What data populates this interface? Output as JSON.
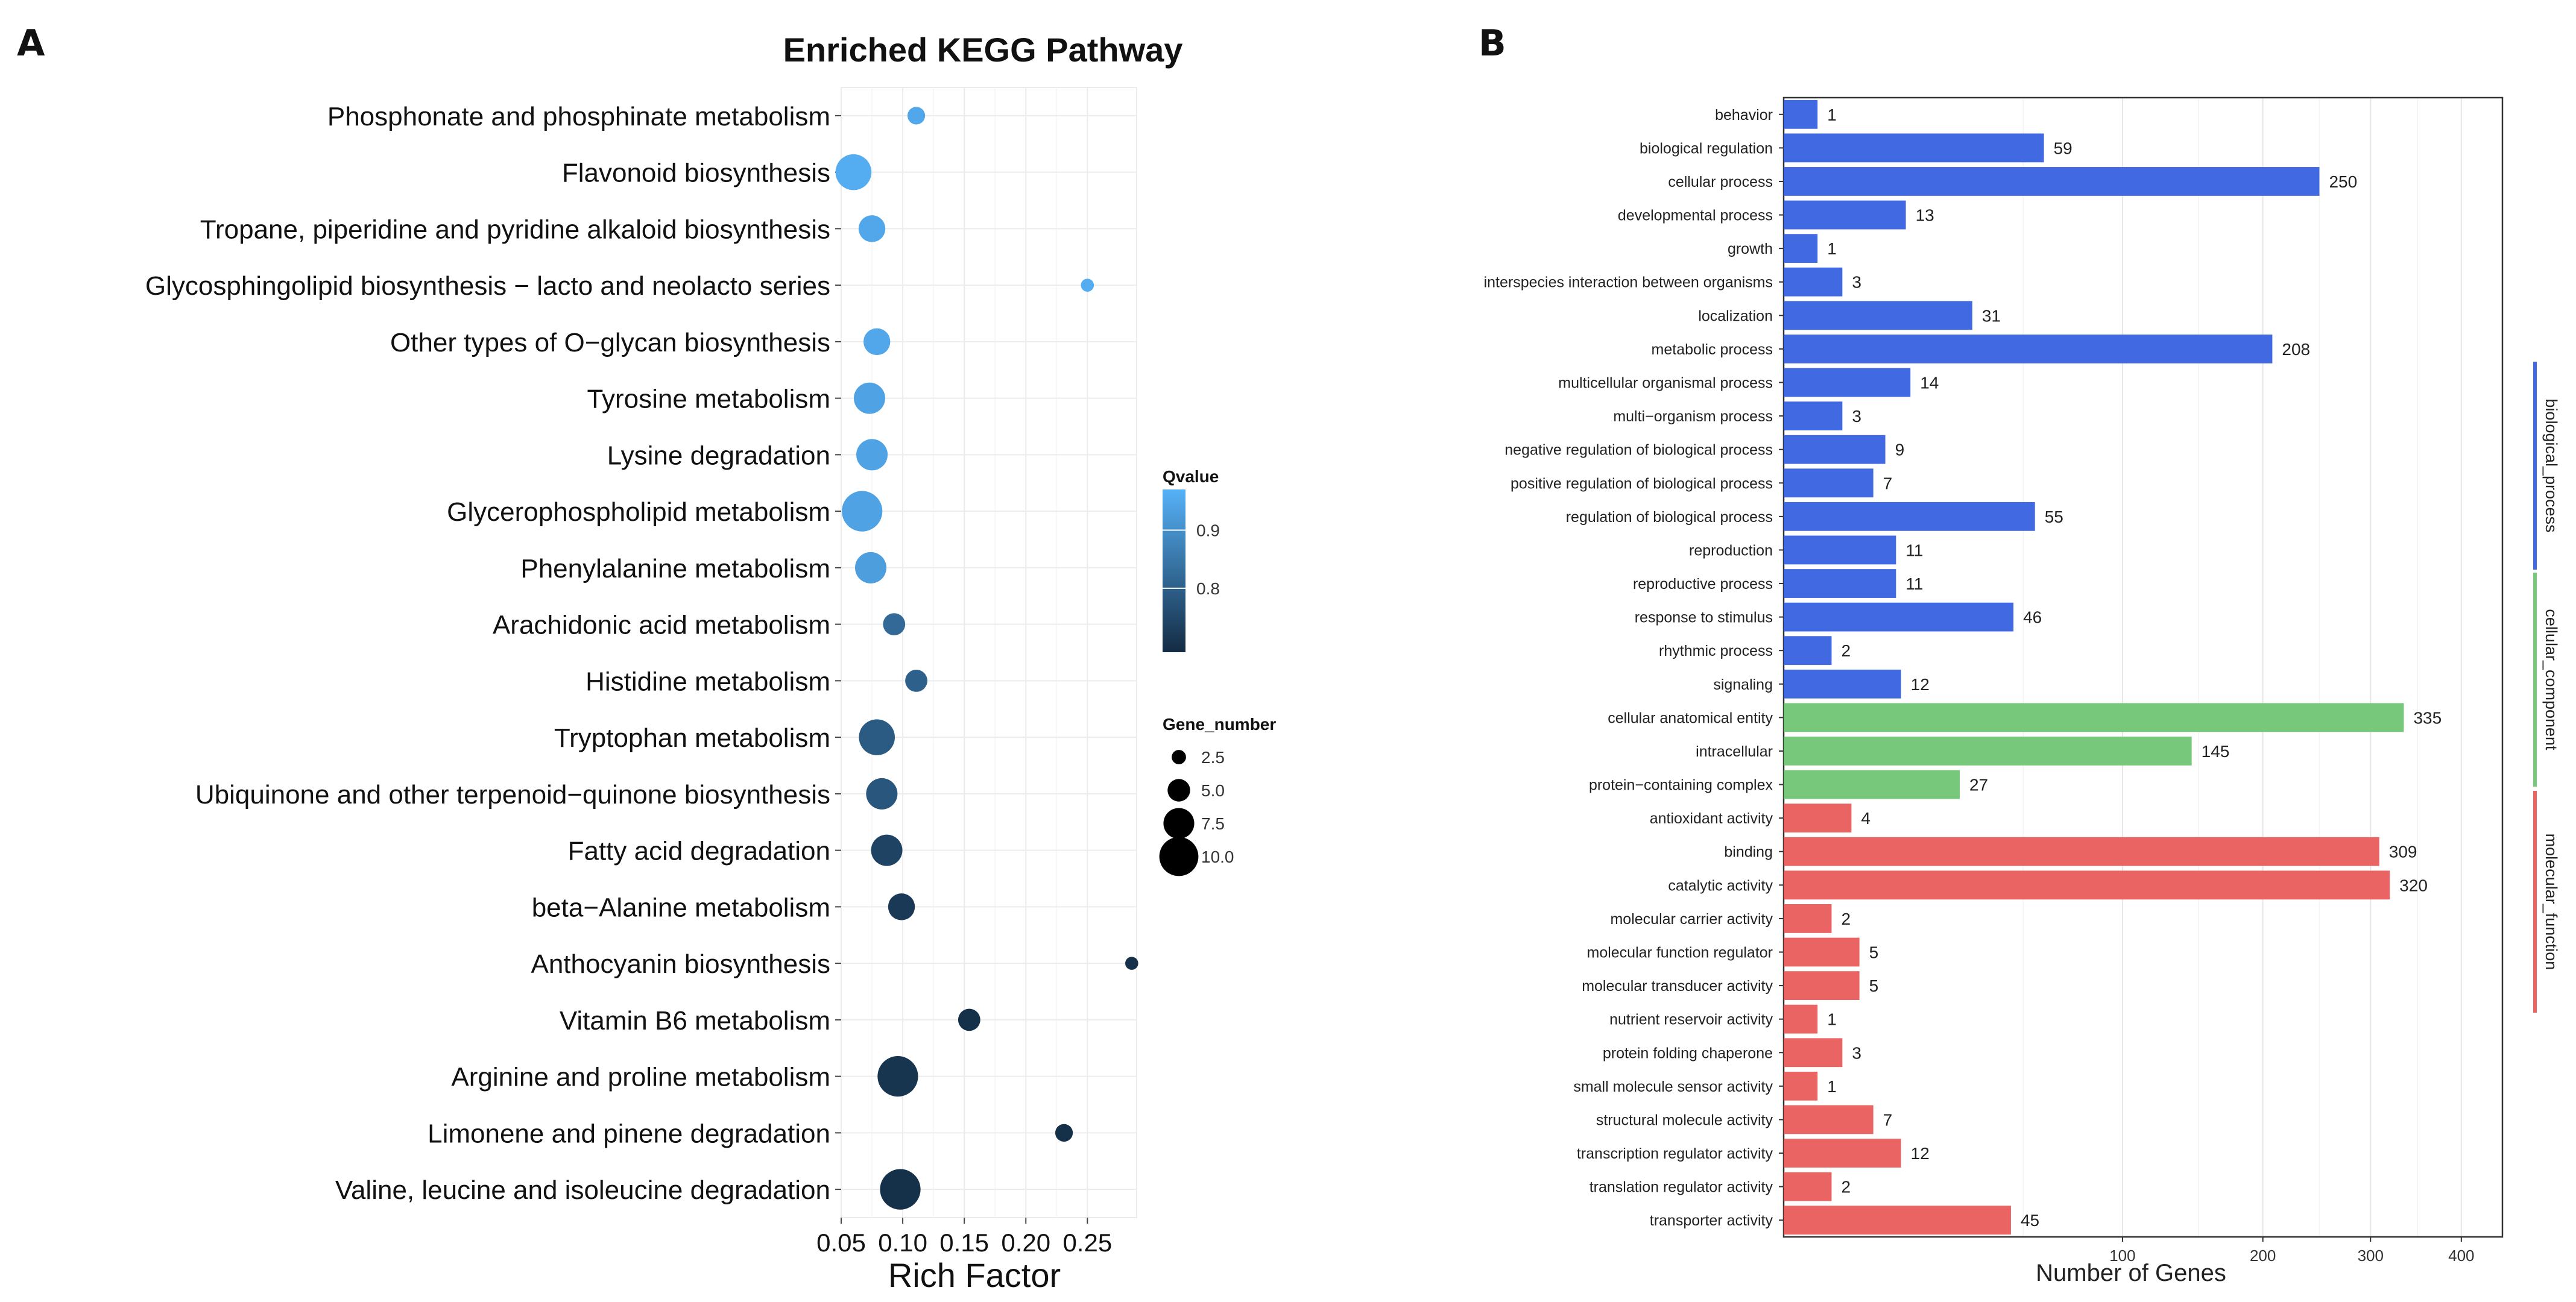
{
  "panels": {
    "a_letter": "A",
    "b_letter": "B"
  },
  "chart_data": [
    {
      "type": "scatter",
      "title": "Enriched KEGG Pathway",
      "xlabel": "Rich Factor",
      "ylabel": "",
      "xlim": [
        0.05,
        0.29
      ],
      "x_ticks": [
        "0.05",
        "0.10",
        "0.15",
        "0.20",
        "0.25"
      ],
      "x_tick_values": [
        0.05,
        0.1,
        0.15,
        0.2,
        0.25
      ],
      "grid": true,
      "categories": [
        "Phosphonate and phosphinate metabolism",
        "Flavonoid biosynthesis",
        "Tropane, piperidine and pyridine alkaloid biosynthesis",
        "Glycosphingolipid biosynthesis − lacto and neolacto series",
        "Other types of O−glycan biosynthesis",
        "Tyrosine metabolism",
        "Lysine degradation",
        "Glycerophospholipid metabolism",
        "Phenylalanine metabolism",
        "Arachidonic acid metabolism",
        "Histidine metabolism",
        "Tryptophan metabolism",
        "Ubiquinone and other terpenoid−quinone biosynthesis",
        "Fatty acid degradation",
        "beta−Alanine metabolism",
        "Anthocyanin biosynthesis",
        "Vitamin B6 metabolism",
        "Arginine and proline metabolism",
        "Limonene and pinene degradation",
        "Valine, leucine and isoleucine degradation"
      ],
      "rich_factor": [
        0.111,
        0.06,
        0.075,
        0.25,
        0.079,
        0.073,
        0.075,
        0.067,
        0.074,
        0.093,
        0.111,
        0.079,
        0.083,
        0.087,
        0.099,
        0.286,
        0.154,
        0.096,
        0.231,
        0.098
      ],
      "qvalue": [
        0.95,
        0.96,
        0.95,
        0.96,
        0.95,
        0.94,
        0.94,
        0.94,
        0.93,
        0.82,
        0.8,
        0.79,
        0.78,
        0.74,
        0.72,
        0.7,
        0.7,
        0.71,
        0.7,
        0.7
      ],
      "gene_number": [
        2,
        6,
        4,
        1,
        4,
        5,
        5,
        7,
        5,
        3,
        3,
        6,
        5,
        5,
        4,
        1,
        3,
        7,
        2,
        7
      ],
      "legend": {
        "placement": "right",
        "color_title": "Qvalue",
        "color_ticks": [
          "0.9",
          "0.8"
        ],
        "color_tick_values": [
          0.9,
          0.8
        ],
        "color_range": [
          0.69,
          0.97
        ],
        "size_title": "Gene_number",
        "size_labels": [
          "2.5",
          "5.0",
          "7.5",
          "10.0"
        ],
        "size_values": [
          2.5,
          5.0,
          7.5,
          10.0
        ]
      }
    },
    {
      "type": "bar",
      "orientation": "horizontal",
      "title": "",
      "xlabel": "Number of Genes",
      "ylabel": "",
      "x_scale": "sqrt",
      "xlim": [
        0,
        450
      ],
      "x_ticks": [
        "100",
        "200",
        "300",
        "400"
      ],
      "x_tick_values": [
        100,
        200,
        300,
        400
      ],
      "grid": true,
      "categories": [
        "behavior",
        "biological regulation",
        "cellular process",
        "developmental process",
        "growth",
        "interspecies interaction between organisms",
        "localization",
        "metabolic process",
        "multicellular organismal process",
        "multi−organism process",
        "negative regulation of biological process",
        "positive regulation of biological process",
        "regulation of biological process",
        "reproduction",
        "reproductive process",
        "response to stimulus",
        "rhythmic process",
        "signaling",
        "cellular anatomical entity",
        "intracellular",
        "protein−containing complex",
        "antioxidant activity",
        "binding",
        "catalytic activity",
        "molecular carrier activity",
        "molecular function regulator",
        "molecular transducer activity",
        "nutrient reservoir activity",
        "protein folding chaperone",
        "small molecule sensor activity",
        "structural molecule activity",
        "transcription regulator activity",
        "translation regulator activity",
        "transporter activity"
      ],
      "values": [
        1,
        59,
        250,
        13,
        1,
        3,
        31,
        208,
        14,
        3,
        9,
        7,
        55,
        11,
        11,
        46,
        2,
        12,
        335,
        145,
        27,
        4,
        309,
        320,
        2,
        5,
        5,
        1,
        3,
        1,
        7,
        12,
        2,
        45
      ],
      "value_labels": [
        "1",
        "59",
        "250",
        "13",
        "1",
        "3",
        "31",
        "208",
        "14",
        "3",
        "9",
        "7",
        "55",
        "11",
        "11",
        "46",
        "2",
        "12",
        "335",
        "145",
        "27",
        "4",
        "309",
        "320",
        "2",
        "5",
        "5",
        "1",
        "3",
        "1",
        "7",
        "12",
        "2",
        "45"
      ],
      "groups": [
        {
          "name": "biological_process",
          "count": 18,
          "color": "#4169e1"
        },
        {
          "name": "cellular_component",
          "count": 3,
          "color": "#77c87a"
        },
        {
          "name": "molecular_function",
          "count": 13,
          "color": "#ea6464"
        }
      ]
    }
  ]
}
